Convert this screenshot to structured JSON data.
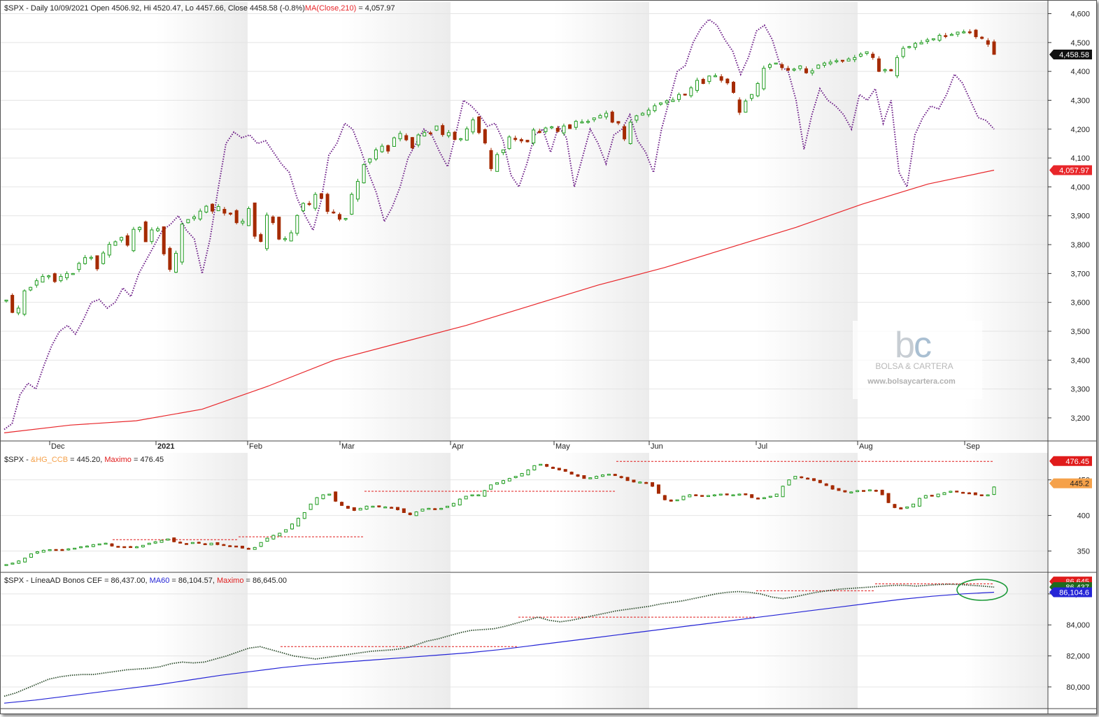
{
  "header": {
    "main": {
      "part1": "$SPX - Daily 10/09/2021 Open 4506.92, Hi 4520.47, Lo 4457.66, Close 4458.58 (-0.8%)",
      "part2": "MA(Close,210)",
      "part3": " = 4,057.97"
    },
    "p2": {
      "part1": "$SPX - ",
      "part2": "&HG_CCB",
      "part3": " = 445.20, ",
      "part4": "Maximo",
      "part5": " = 476.45"
    },
    "p3": {
      "part1": "$SPX - LíneaAD Bonos CEF = 86,437.00, ",
      "part2": "MA60",
      "part3": " = 86,104.57, ",
      "part4": "Maximo",
      "part5": " = 86,645.00"
    }
  },
  "price_tags": {
    "close": "4,458.58",
    "ma": "4,057.97",
    "hg_max": "476.45",
    "hg_last": "445.2",
    "ad_max": "86,645",
    "ad_last": "86,437",
    "ad_ma": "86,104.6"
  },
  "watermark": {
    "brand": "BOLSA & CARTERA",
    "url": "www.bolsaycartera.com"
  },
  "colors": {
    "up": "#1e9b1e",
    "down": "#a52a00",
    "ma210": "#e8262a",
    "purple": "#6b1b86",
    "ma60": "#2424d6",
    "ad": "#2b4b2b",
    "dashed": "#e01b1b",
    "hg_tag": "#f5a14a",
    "circle": "#1d9a3a"
  },
  "chart_data": [
    {
      "type": "line",
      "title": "$SPX - Daily 10/09/2021",
      "x_labels": [
        "Dec",
        "2021",
        "Feb",
        "Mar",
        "Apr",
        "May",
        "Jun",
        "Jul",
        "Aug",
        "Sep"
      ],
      "y_ticks": [
        3200,
        3300,
        3400,
        3500,
        3600,
        3700,
        3800,
        3900,
        4000,
        4100,
        4200,
        4300,
        4400,
        4500,
        4600
      ],
      "ylim": [
        3120,
        4640
      ],
      "series": [
        {
          "name": "$SPX",
          "kind": "candlestick",
          "values": [
            3608,
            3565,
            3580,
            3640,
            3652,
            3675,
            3690,
            3692,
            3672,
            3690,
            3700,
            3700,
            3735,
            3755,
            3756,
            3716,
            3771,
            3801,
            3810,
            3825,
            3798,
            3853,
            3860,
            3810,
            3851,
            3855,
            3768,
            3714,
            3770,
            3871,
            3887,
            3896,
            3916,
            3933,
            3916,
            3932,
            3909,
            3906,
            3876,
            3881,
            3925,
            3829,
            3811,
            3902,
            3876,
            3819,
            3821,
            3841,
            3901,
            3943,
            3939,
            3974,
            3960,
            3915,
            3911,
            3888,
            3891,
            3974,
            4019,
            4077,
            4097,
            4128,
            4141,
            4124,
            4170,
            4185,
            4163,
            4135,
            4180,
            4188,
            4187,
            4211,
            4181,
            4188,
            4164,
            4167,
            4201,
            4232,
            4188,
            4152,
            4063,
            4112,
            4128,
            4173,
            4164,
            4159,
            4156,
            4197,
            4188,
            4204,
            4208,
            4192,
            4211,
            4202,
            4227,
            4225,
            4227,
            4239,
            4247,
            4255,
            4224,
            4221,
            4166,
            4224,
            4246,
            4255,
            4266,
            4281,
            4291,
            4298,
            4301,
            4320,
            4320,
            4343,
            4369,
            4358,
            4384,
            4385,
            4369,
            4360,
            4327,
            4258,
            4297,
            4320,
            4358,
            4411,
            4423,
            4429,
            4413,
            4404,
            4408,
            4419,
            4395,
            4402,
            4422,
            4429,
            4432,
            4437,
            4438,
            4443,
            4448,
            4460,
            4468,
            4448,
            4400,
            4406,
            4402,
            4448,
            4480,
            4486,
            4497,
            4500,
            4509,
            4513,
            4525,
            4523,
            4528,
            4536,
            4537,
            4536,
            4520,
            4514,
            4494,
            4459
          ]
        },
        {
          "name": "&HG_CCB ratio",
          "kind": "line",
          "values": [
            3160,
            3180,
            3280,
            3320,
            3300,
            3380,
            3450,
            3500,
            3520,
            3490,
            3540,
            3600,
            3610,
            3580,
            3600,
            3650,
            3620,
            3700,
            3750,
            3800,
            3850,
            3870,
            3900,
            3850,
            3820,
            3700,
            3820,
            3990,
            4150,
            4190,
            4170,
            4180,
            4150,
            4160,
            4120,
            4080,
            4050,
            3960,
            3900,
            3850,
            3950,
            4110,
            4150,
            4220,
            4200,
            4130,
            4050,
            3980,
            3880,
            3930,
            4000,
            4100,
            4150,
            4200,
            4180,
            4120,
            4070,
            4180,
            4300,
            4280,
            4250,
            4210,
            4220,
            4160,
            4040,
            4000,
            4080,
            4180,
            4200,
            4120,
            4210,
            4170,
            4000,
            4100,
            4200,
            4150,
            4080,
            4180,
            4200,
            4250,
            4160,
            4120,
            4050,
            4200,
            4300,
            4400,
            4420,
            4500,
            4550,
            4580,
            4560,
            4510,
            4470,
            4390,
            4450,
            4540,
            4560,
            4510,
            4420,
            4400,
            4300,
            4130,
            4250,
            4340,
            4300,
            4280,
            4250,
            4200,
            4320,
            4300,
            4340,
            4220,
            4300,
            4050,
            4000,
            4180,
            4240,
            4280,
            4270,
            4320,
            4390,
            4360,
            4300,
            4240,
            4230,
            4200
          ]
        },
        {
          "name": "MA(Close,210)",
          "kind": "line",
          "values": [
            3148,
            3175,
            3190,
            3230,
            3310,
            3400,
            3460,
            3520,
            3590,
            3660,
            3720,
            3790,
            3860,
            3940,
            4010,
            4058
          ]
        }
      ]
    },
    {
      "type": "line",
      "title": "$SPX - &HG_CCB",
      "y_ticks": [
        350,
        400,
        450
      ],
      "ylim": [
        320,
        488
      ],
      "series": [
        {
          "name": "&HG_CCB",
          "kind": "candlestick",
          "values": [
            331,
            333,
            336,
            340,
            346,
            349,
            351,
            352,
            352,
            352,
            353,
            354,
            356,
            357,
            359,
            360,
            361,
            357,
            356,
            356,
            355,
            356,
            358,
            361,
            363,
            365,
            367,
            363,
            361,
            360,
            362,
            361,
            359,
            361,
            359,
            358,
            357,
            356,
            354,
            353,
            355,
            362,
            368,
            372,
            375,
            380,
            388,
            396,
            404,
            416,
            425,
            429,
            430,
            420,
            414,
            410,
            407,
            410,
            413,
            413,
            412,
            412,
            411,
            408,
            404,
            401,
            405,
            409,
            410,
            409,
            410,
            413,
            417,
            423,
            427,
            429,
            429,
            435,
            443,
            446,
            449,
            452,
            455,
            459,
            464,
            470,
            472,
            469,
            466,
            464,
            462,
            458,
            455,
            452,
            453,
            455,
            457,
            458,
            456,
            453,
            449,
            447,
            447,
            445,
            441,
            431,
            422,
            420,
            422,
            427,
            429,
            428,
            428,
            428,
            429,
            430,
            429,
            429,
            430,
            429,
            425,
            424,
            425,
            427,
            430,
            441,
            450,
            455,
            453,
            451,
            449,
            446,
            442,
            437,
            435,
            433,
            433,
            435,
            435,
            436,
            434,
            429,
            418,
            411,
            409,
            412,
            416,
            424,
            428,
            427,
            430,
            432,
            434,
            433,
            432,
            431,
            429,
            428,
            429,
            440
          ]
        },
        {
          "name": "Maximo",
          "kind": "step",
          "values": [
            366,
            370,
            434,
            434,
            476,
            476,
            476,
            476
          ]
        }
      ]
    },
    {
      "type": "line",
      "title": "$SPX - LíneaAD Bonos CEF",
      "y_ticks": [
        80000,
        82000,
        84000,
        86000
      ],
      "ylim": [
        78600,
        87300
      ],
      "series": [
        {
          "name": "LíneaAD Bonos CEF",
          "kind": "line",
          "values": [
            79400,
            79600,
            79900,
            80200,
            80500,
            80650,
            80750,
            80800,
            80800,
            80900,
            81000,
            81100,
            81150,
            81200,
            81300,
            81500,
            81600,
            81550,
            81600,
            81800,
            82000,
            82250,
            82500,
            82600,
            82400,
            82200,
            82000,
            81900,
            81800,
            81900,
            82000,
            82100,
            82200,
            82300,
            82350,
            82400,
            82500,
            82700,
            82950,
            83100,
            83300,
            83500,
            83650,
            83700,
            83750,
            83900,
            84100,
            84300,
            84500,
            84300,
            84200,
            84300,
            84450,
            84600,
            84750,
            84900,
            85000,
            85100,
            85200,
            85350,
            85450,
            85550,
            85700,
            85850,
            86000,
            86100,
            86150,
            86100,
            86000,
            85800,
            85700,
            85800,
            85950,
            86100,
            86200,
            86300,
            86350,
            86400,
            86450,
            86500,
            86550,
            86550,
            86500,
            86550,
            86600,
            86620,
            86600,
            86550,
            86500,
            86437
          ]
        },
        {
          "name": "MA60",
          "kind": "line",
          "values": [
            78950,
            79150,
            79400,
            79650,
            79900,
            80150,
            80450,
            80750,
            81000,
            81250,
            81450,
            81600,
            81750,
            81900,
            82050,
            82200,
            82400,
            82650,
            82900,
            83150,
            83400,
            83650,
            83900,
            84150,
            84400,
            84650,
            84900,
            85150,
            85400,
            85650,
            85850,
            86000,
            86105
          ]
        },
        {
          "name": "Maximo",
          "kind": "step",
          "values": [
            82600,
            82600,
            84500,
            84500,
            86200,
            86645,
            86645
          ]
        }
      ]
    }
  ]
}
